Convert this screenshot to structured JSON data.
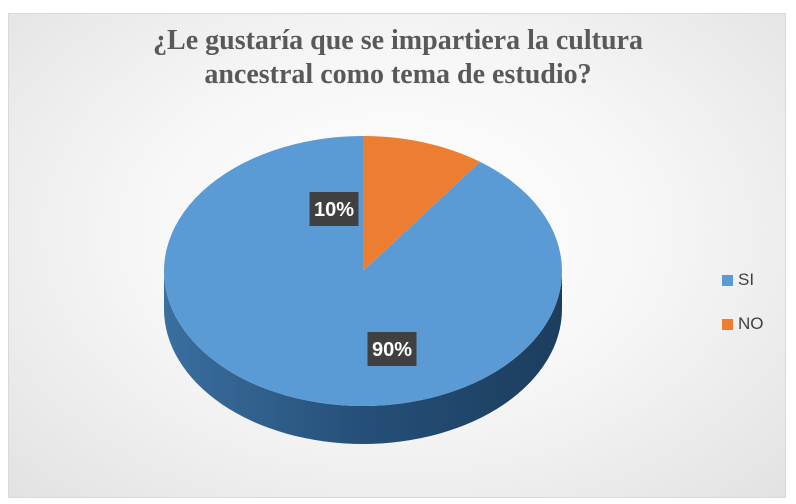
{
  "chart_data": {
    "type": "pie",
    "title_lines": [
      "¿Le gustaría que se impartiera la cultura",
      "ancestral como tema de estudio?"
    ],
    "categories": [
      "SI",
      "NO"
    ],
    "values": [
      90,
      10
    ],
    "data_labels": [
      "90%",
      "10%"
    ],
    "colors": [
      "#5b9bd5",
      "#ed7d31"
    ],
    "legend_position": "right"
  }
}
